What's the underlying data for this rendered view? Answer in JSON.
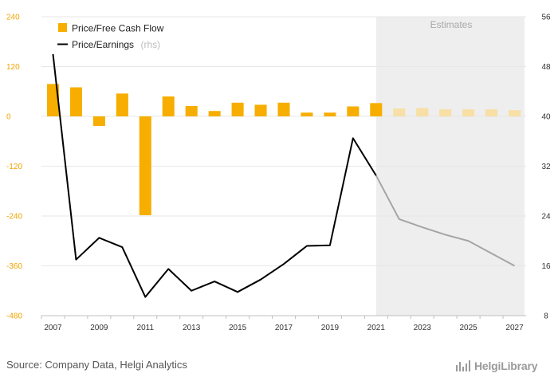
{
  "chart_data": {
    "type": "bar+line",
    "categories": [
      "2007",
      "2008",
      "2009",
      "2010",
      "2011",
      "2012",
      "2013",
      "2014",
      "2015",
      "2016",
      "2017",
      "2018",
      "2019",
      "2020",
      "2021",
      "2022",
      "2023",
      "2024",
      "2025",
      "2026",
      "2027"
    ],
    "series": [
      {
        "name": "Price/Free Cash Flow",
        "type": "bar",
        "axis": "left",
        "values": [
          78,
          70,
          -23,
          55,
          -238,
          48,
          25,
          13,
          33,
          28,
          33,
          9,
          9,
          24,
          32,
          19,
          20,
          17,
          17,
          17,
          15
        ],
        "estimate_start_index": 15
      },
      {
        "name": "Price/Earnings",
        "suffix": "(rhs)",
        "type": "line",
        "axis": "right",
        "values": [
          50.0,
          17.0,
          20.5,
          19.0,
          11.0,
          15.5,
          12.0,
          13.5,
          11.8,
          13.8,
          16.3,
          19.2,
          19.3,
          36.5,
          30.5,
          23.5,
          22.2,
          21.0,
          20.0,
          18.0,
          16.0
        ],
        "estimate_start_index": 14
      }
    ],
    "left_axis": {
      "min": -480,
      "max": 240,
      "ticks": [
        "240",
        "120",
        "0",
        "-120",
        "-240",
        "-360",
        "-480"
      ],
      "color": "#f0a500"
    },
    "right_axis": {
      "min": 8,
      "max": 56,
      "ticks": [
        "56",
        "48",
        "40",
        "32",
        "24",
        "16",
        "8"
      ]
    },
    "x_tick_labels": [
      "2007",
      "2009",
      "2011",
      "2013",
      "2015",
      "2017",
      "2019",
      "2021",
      "2023",
      "2025",
      "2027"
    ],
    "estimates_label": "Estimates",
    "estimates_from": "2022",
    "legend": {
      "position": "top-left"
    },
    "grid": true,
    "colors": {
      "bar": "#f7ae00",
      "bar_estimate": "#f7dfa6",
      "line": "#000000",
      "line_estimate": "#a5a5a5",
      "estimates_band": "#eeeeee",
      "grid": "#e7e7e7"
    }
  },
  "footer": {
    "source": "Source: Company Data, Helgi Analytics",
    "logo": "HelgiLibrary"
  }
}
